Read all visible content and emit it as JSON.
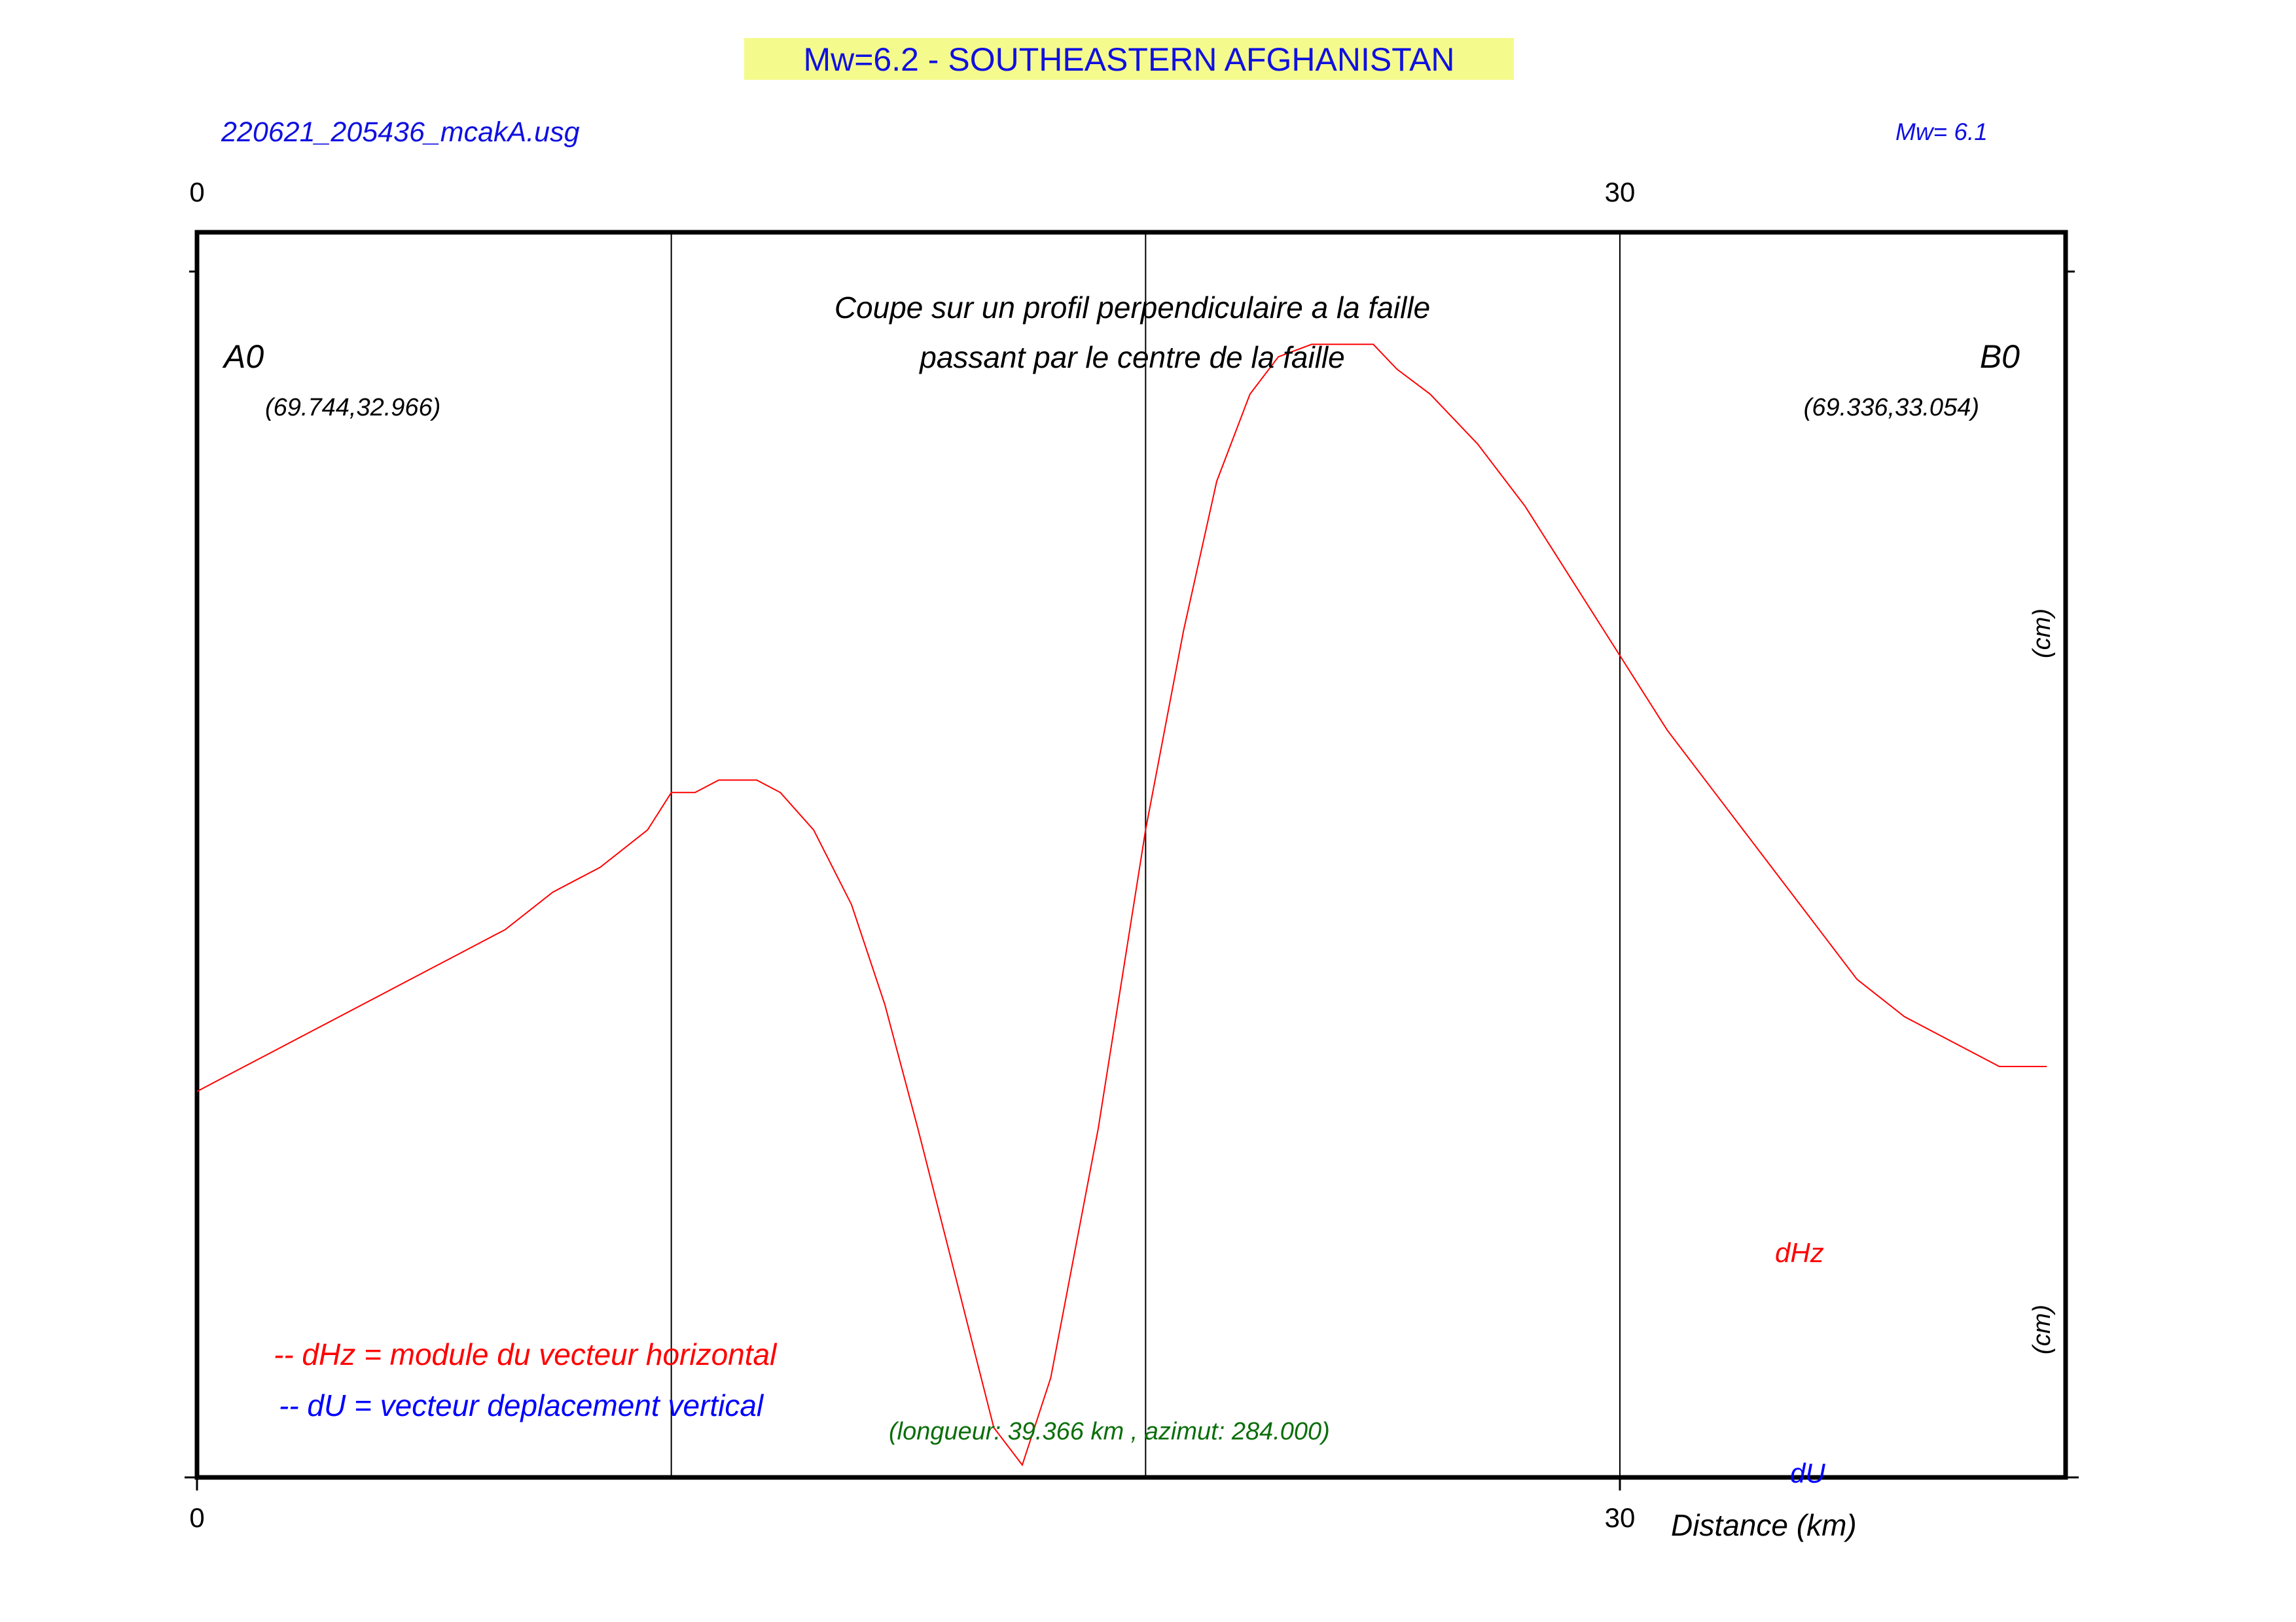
{
  "title": "Mw=6.2 - SOUTHEASTERN AFGHANISTAN",
  "file_label": "220621_205436_mcakA.usg",
  "mw_label": "Mw= 6.1",
  "section_title_line1": "Coupe sur un profil perpendiculaire a la faille",
  "section_title_line2": "passant par le centre de la faille",
  "point_a": {
    "name": "A0",
    "coords": "(69.744,32.966)"
  },
  "point_b": {
    "name": "B0",
    "coords": "(69.336,33.054)"
  },
  "profile_info": "(longueur: 39.366 km , azimut: 284.000)",
  "legend": {
    "dhz": "-- dHz = module du vecteur horizontal",
    "du": "-- dU =  vecteur deplacement vertical"
  },
  "series_labels": {
    "dhz": "dHz",
    "du": "dU"
  },
  "colors": {
    "title_bg": "#f4fb8c",
    "title_text": "#1010e0",
    "dhz": "#ff0000",
    "du": "#0000ff",
    "profile_info": "#0a6e0a",
    "frame": "#000000"
  },
  "chart_data": {
    "type": "line",
    "xlabel": "Distance (km)",
    "ylabel_right_top": "(cm)",
    "ylabel_right_bottom": "(cm)",
    "xlim": [
      0,
      39.366
    ],
    "x_ticks": [
      {
        "value": 0,
        "label": "0"
      },
      {
        "value": 30,
        "label": "30"
      }
    ],
    "y_tick_left": "0",
    "y_tick_right": "0",
    "vertical_lines_x": [
      10,
      20,
      30
    ],
    "ylim": [
      0,
      1
    ],
    "series": [
      {
        "name": "dHz",
        "points": [
          [
            0.0,
            0.31
          ],
          [
            0.5,
            0.32
          ],
          [
            1.5,
            0.34
          ],
          [
            2.5,
            0.36
          ],
          [
            3.5,
            0.38
          ],
          [
            4.5,
            0.4
          ],
          [
            5.5,
            0.42
          ],
          [
            6.5,
            0.44
          ],
          [
            7.5,
            0.47
          ],
          [
            8.5,
            0.49
          ],
          [
            9.5,
            0.52
          ],
          [
            10.0,
            0.55
          ],
          [
            10.5,
            0.55
          ],
          [
            11.0,
            0.56
          ],
          [
            11.3,
            0.56
          ],
          [
            11.8,
            0.56
          ],
          [
            12.3,
            0.55
          ],
          [
            13.0,
            0.52
          ],
          [
            13.8,
            0.46
          ],
          [
            14.5,
            0.38
          ],
          [
            15.2,
            0.28
          ],
          [
            16.0,
            0.16
          ],
          [
            16.8,
            0.04
          ],
          [
            17.4,
            0.01
          ],
          [
            18.0,
            0.08
          ],
          [
            19.0,
            0.28
          ],
          [
            20.0,
            0.52
          ],
          [
            20.8,
            0.68
          ],
          [
            21.5,
            0.8
          ],
          [
            22.2,
            0.87
          ],
          [
            22.8,
            0.9
          ],
          [
            23.5,
            0.91
          ],
          [
            24.2,
            0.91
          ],
          [
            24.8,
            0.91
          ],
          [
            25.3,
            0.89
          ],
          [
            26.0,
            0.87
          ],
          [
            27.0,
            0.83
          ],
          [
            28.0,
            0.78
          ],
          [
            29.0,
            0.72
          ],
          [
            30.0,
            0.66
          ],
          [
            31.0,
            0.6
          ],
          [
            32.0,
            0.55
          ],
          [
            33.0,
            0.5
          ],
          [
            34.0,
            0.45
          ],
          [
            35.0,
            0.4
          ],
          [
            36.0,
            0.37
          ],
          [
            37.0,
            0.35
          ],
          [
            38.0,
            0.33
          ],
          [
            39.0,
            0.33
          ]
        ]
      }
    ]
  }
}
